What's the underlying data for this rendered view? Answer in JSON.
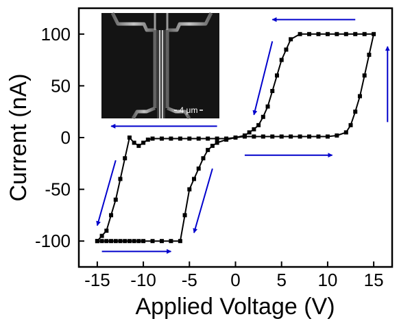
{
  "chart_data": {
    "type": "line",
    "title": "",
    "xlabel": "Applied Voltage (V)",
    "ylabel": "Current (nA)",
    "xlim": [
      -17,
      17
    ],
    "ylim": [
      -125,
      125
    ],
    "xticks": [
      -15,
      -10,
      -5,
      0,
      5,
      10,
      15
    ],
    "yticks": [
      -100,
      -50,
      0,
      50,
      100
    ],
    "xtick_labels": [
      "-15",
      "-10",
      "-5",
      "0",
      "5",
      "10",
      "15"
    ],
    "ytick_labels": [
      "-100",
      "-50",
      "0",
      "50",
      "100"
    ],
    "grid": false,
    "legend": "none",
    "series": [
      {
        "color": "#000000",
        "marker": "square",
        "x": [
          -15,
          -14.5,
          -14,
          -13.5,
          -13,
          -12.5,
          -12,
          -11.5,
          -11,
          -10.5,
          -10,
          -9,
          -8,
          -7,
          -6,
          -5.5,
          -5,
          -4.5,
          -4,
          -3.5,
          -3,
          -2.5,
          -2,
          -1,
          0,
          1,
          1.5,
          2,
          2.5,
          3,
          3.5,
          4,
          4.5,
          5,
          5.5,
          6,
          7,
          8,
          9,
          10,
          11,
          12,
          13,
          14,
          15,
          14.5,
          14,
          13.5,
          13,
          12.5,
          12,
          11,
          10,
          9,
          8,
          7,
          6,
          5,
          4,
          3,
          2,
          1,
          0,
          -1,
          -2,
          -3,
          -4,
          -5,
          -6,
          -7,
          -8,
          -9,
          -9.5,
          -10,
          -10.5,
          -11,
          -11.5,
          -12,
          -12.5,
          -13,
          -13.5,
          -14,
          -14.5,
          -15
        ],
        "y": [
          -100,
          -100,
          -100,
          -100,
          -100,
          -100,
          -100,
          -100,
          -100,
          -100,
          -100,
          -100,
          -100,
          -100,
          -100,
          -75,
          -50,
          -40,
          -30,
          -20,
          -12,
          -8,
          -5,
          -2,
          0,
          2,
          5,
          8,
          12,
          20,
          30,
          45,
          60,
          75,
          85,
          95,
          100,
          100,
          100,
          100,
          100,
          100,
          100,
          100,
          100,
          80,
          60,
          40,
          25,
          12,
          5,
          2,
          1,
          1,
          1,
          1,
          1,
          1,
          1,
          1,
          1,
          1,
          0,
          -1,
          -1,
          -1,
          -1,
          -1,
          -1,
          -1,
          -1,
          -1,
          -2,
          -5,
          -8,
          -5,
          0,
          -20,
          -40,
          -60,
          -75,
          -90,
          -95,
          -100
        ]
      }
    ],
    "annotations": {
      "scale_bar_label": "4 μm",
      "arrow_color": "#0000cc",
      "arrows": [
        {
          "x1": 13,
          "y1": 114,
          "x2": 4,
          "y2": 114
        },
        {
          "x1": 16.5,
          "y1": 15,
          "x2": 16.5,
          "y2": 88
        },
        {
          "x1": 4,
          "y1": 93,
          "x2": 2,
          "y2": 22
        },
        {
          "x1": -2,
          "y1": 11,
          "x2": -13.5,
          "y2": 11
        },
        {
          "x1": 1,
          "y1": -17,
          "x2": 10.5,
          "y2": -17
        },
        {
          "x1": -2.5,
          "y1": -30,
          "x2": -4.5,
          "y2": -92
        },
        {
          "x1": -13,
          "y1": -22,
          "x2": -15,
          "y2": -85
        },
        {
          "x1": -14.5,
          "y1": -110,
          "x2": -7,
          "y2": -110
        }
      ]
    }
  }
}
